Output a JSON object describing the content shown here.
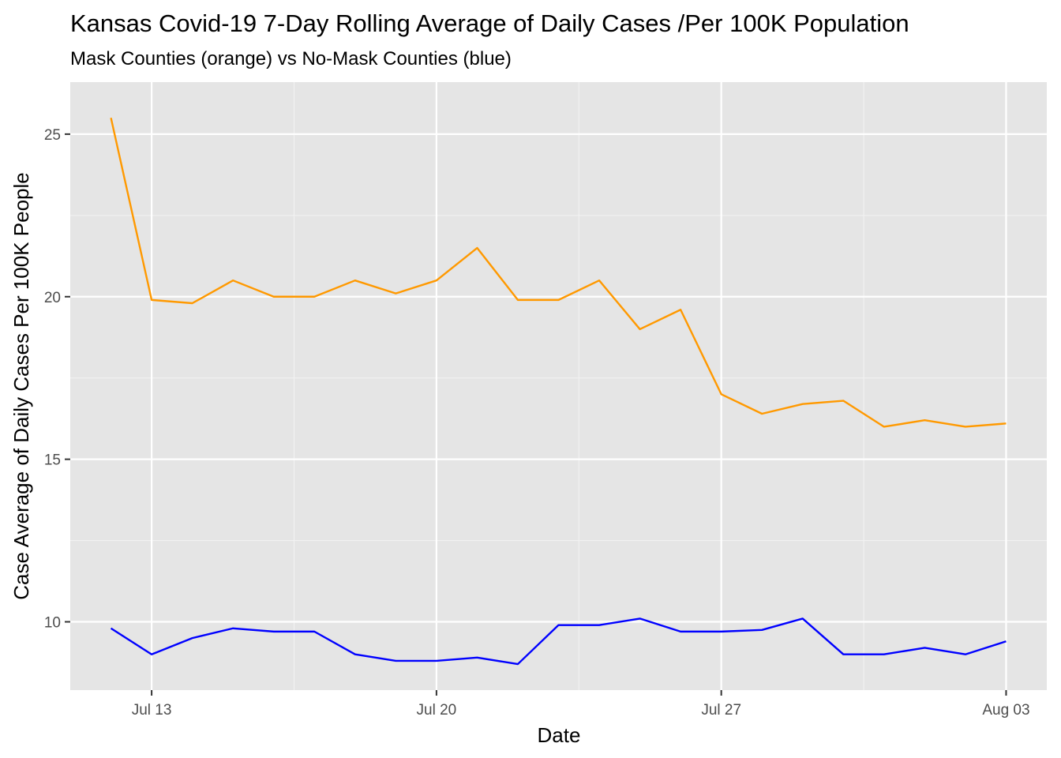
{
  "chart_data": {
    "type": "line",
    "title": "Kansas Covid-19 7-Day Rolling Average of Daily Cases /Per 100K Population",
    "subtitle": "Mask Counties (orange) vs No-Mask Counties (blue)",
    "xlabel": "Date",
    "ylabel": "Case Average of Daily Cases Per 100K People",
    "x": [
      "Jul 12",
      "Jul 13",
      "Jul 14",
      "Jul 15",
      "Jul 16",
      "Jul 17",
      "Jul 18",
      "Jul 19",
      "Jul 20",
      "Jul 21",
      "Jul 22",
      "Jul 23",
      "Jul 24",
      "Jul 25",
      "Jul 26",
      "Jul 27",
      "Jul 28",
      "Jul 29",
      "Jul 30",
      "Jul 31",
      "Aug 01",
      "Aug 02",
      "Aug 03"
    ],
    "xlim": [
      "Jul 11",
      "Aug 04"
    ],
    "ylim": [
      7.9,
      26.6
    ],
    "x_ticks": [
      {
        "label": "Jul 13",
        "index": 1
      },
      {
        "label": "Jul 20",
        "index": 8
      },
      {
        "label": "Jul 27",
        "index": 15
      },
      {
        "label": "Aug 03",
        "index": 22
      }
    ],
    "y_ticks": [
      10,
      15,
      20,
      25
    ],
    "y_minor": [
      12.5,
      17.5,
      22.5
    ],
    "x_minor": [
      4.5,
      11.5,
      18.5
    ],
    "grid": true,
    "legend": "none",
    "background": "#e5e5e5",
    "series": [
      {
        "color": "#ff9900",
        "values": [
          25.5,
          19.9,
          19.8,
          20.5,
          20.0,
          20.0,
          20.5,
          20.1,
          20.5,
          21.5,
          19.9,
          19.9,
          20.5,
          19.0,
          19.6,
          17.0,
          16.4,
          16.7,
          16.8,
          16.0,
          16.2,
          16.0,
          16.1
        ]
      },
      {
        "color": "#0000ff",
        "values": [
          9.8,
          9.0,
          9.5,
          9.8,
          9.7,
          9.7,
          9.0,
          8.8,
          8.8,
          8.9,
          8.7,
          9.9,
          9.9,
          10.1,
          9.7,
          9.7,
          9.75,
          10.1,
          9.0,
          9.0,
          9.2,
          9.0,
          9.4
        ]
      }
    ]
  }
}
